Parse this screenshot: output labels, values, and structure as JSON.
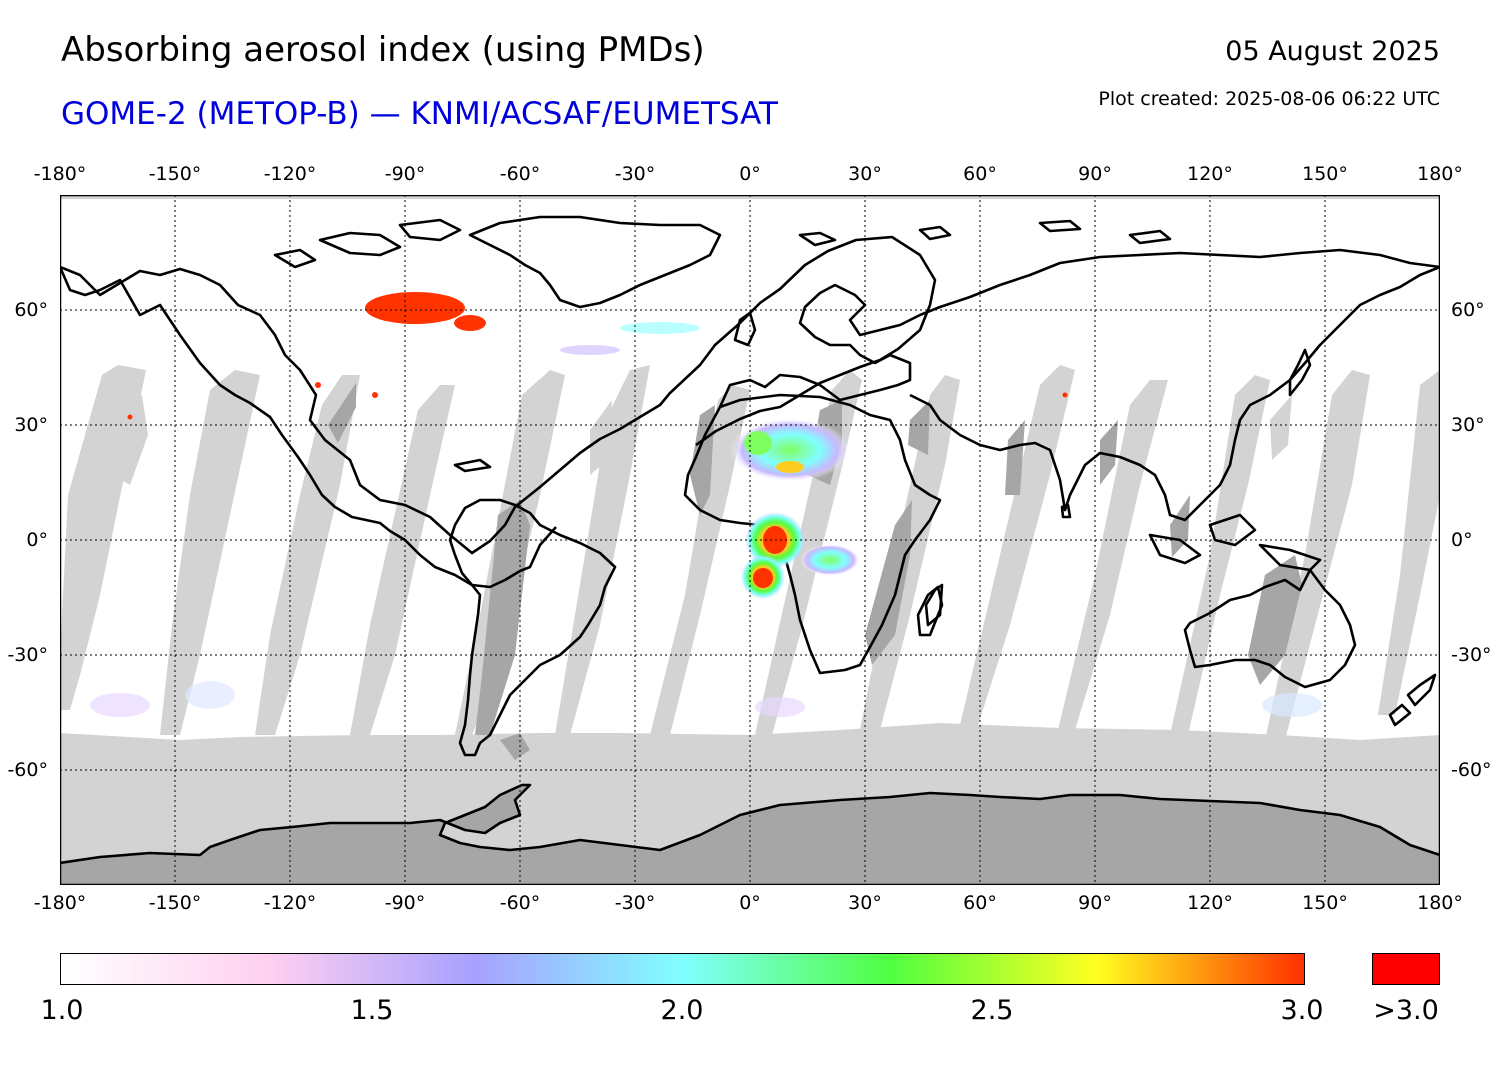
{
  "header": {
    "title": "Absorbing aerosol index (using PMDs)",
    "subtitle": "GOME-2 (METOP-B) — KNMI/ACSAF/EUMETSAT",
    "date": "05 August 2025",
    "plot_created": "Plot created: 2025-08-06 06:22 UTC"
  },
  "colors": {
    "title": "#000000",
    "subtitle": "#0000dd",
    "no_data": "#d3d3d3",
    "land_no_data": "#a6a6a6",
    "coastline": "#000000",
    "high_value": "#ff3300",
    "overflow": "#ff0000"
  },
  "map": {
    "projection": "equirectangular",
    "lon_range": [
      -180,
      180
    ],
    "lat_range": [
      -90,
      90
    ],
    "grid": "dotted",
    "lon_ticks": [
      "-180°",
      "-150°",
      "-120°",
      "-90°",
      "-60°",
      "-30°",
      "0°",
      "30°",
      "60°",
      "90°",
      "120°",
      "150°",
      "180°"
    ],
    "lat_ticks": [
      "60°",
      "30°",
      "0°",
      "-30°",
      "-60°"
    ],
    "lon_values": [
      -180,
      -150,
      -120,
      -90,
      -60,
      -30,
      0,
      30,
      60,
      90,
      120,
      150,
      180
    ],
    "lat_values": [
      60,
      30,
      0,
      -30,
      -60
    ]
  },
  "colorbar": {
    "min": 1.0,
    "max": 3.0,
    "tick_labels": [
      "1.0",
      "1.5",
      "2.0",
      "2.5",
      "3.0"
    ],
    "tick_values": [
      1.0,
      1.5,
      2.0,
      2.5,
      3.0
    ],
    "overflow_label": ">3.0",
    "stops": [
      "#ffffff",
      "#ffd0f0",
      "#a8a0ff",
      "#80ffff",
      "#50ff40",
      "#ffff20",
      "#ff3000"
    ]
  }
}
